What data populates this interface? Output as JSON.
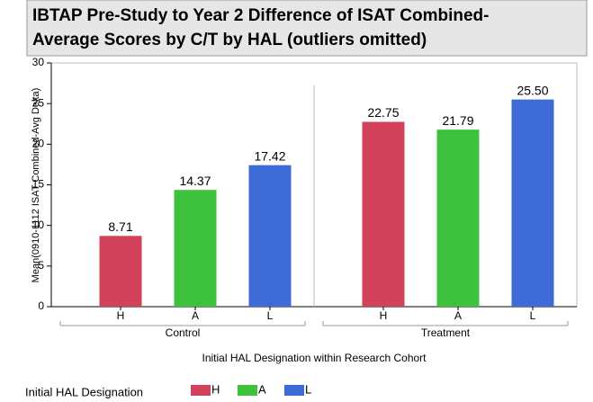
{
  "chart_data": {
    "type": "bar",
    "title": [
      "IBTAP Pre-Study to Year 2 Difference of ISAT Combined-",
      "Average Scores by C/T by HAL (outliers omitted)"
    ],
    "x_label": "Initial HAL Designation within Research Cohort",
    "y_label": "Mean(0910-1112 ISAT Combined-Avg Delta)",
    "legend_title": "Initial HAL Designation",
    "categories": [
      "Control",
      "Treatment"
    ],
    "series": [
      {
        "name": "H",
        "color": "#d2425a",
        "values": [
          8.71,
          22.75
        ],
        "value_labels": [
          "8.71",
          "22.75"
        ]
      },
      {
        "name": "A",
        "color": "#3dc23d",
        "values": [
          14.37,
          21.79
        ],
        "value_labels": [
          "14.37",
          "21.79"
        ]
      },
      {
        "name": "L",
        "color": "#3f6bd6",
        "values": [
          17.42,
          25.5
        ],
        "value_labels": [
          "17.42",
          "25.50"
        ]
      }
    ],
    "ylim": [
      0,
      30
    ],
    "yticks": [
      0,
      5,
      10,
      15,
      20,
      25,
      30
    ],
    "grid": false,
    "legend": "bottom"
  }
}
